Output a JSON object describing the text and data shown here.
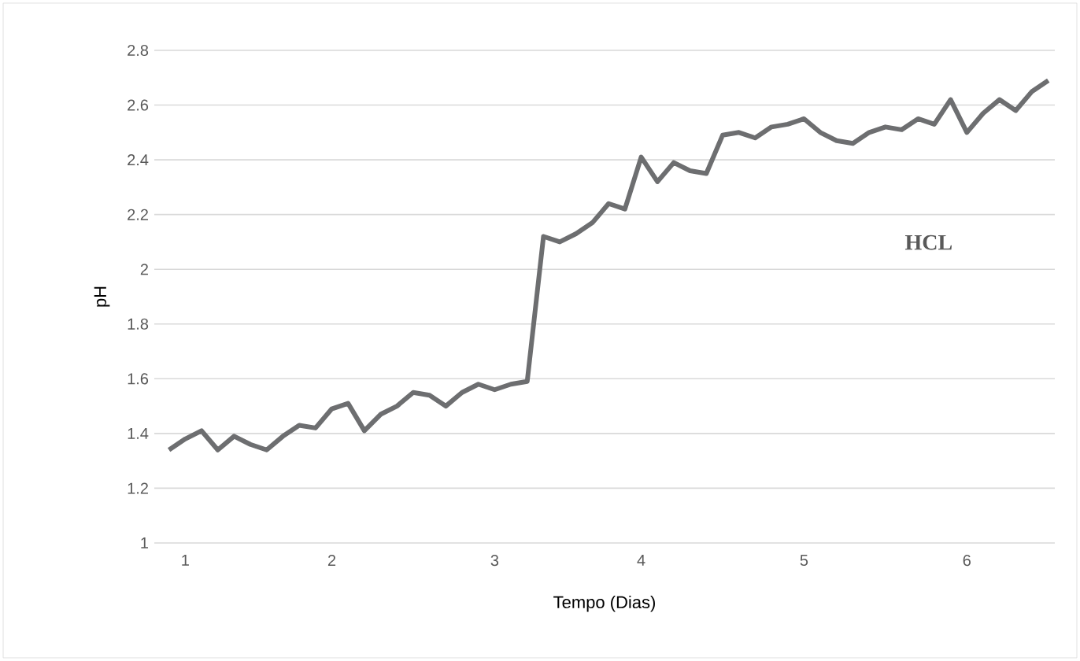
{
  "chart_data": {
    "type": "line",
    "xlabel": "Tempo (Dias)",
    "ylabel": "pH",
    "categories": [
      null,
      "1",
      null,
      null,
      null,
      null,
      null,
      null,
      null,
      null,
      "2",
      null,
      null,
      null,
      null,
      null,
      null,
      null,
      null,
      null,
      "3",
      null,
      null,
      null,
      null,
      null,
      null,
      null,
      null,
      "4",
      null,
      null,
      null,
      null,
      null,
      null,
      null,
      null,
      null,
      "5",
      null,
      null,
      null,
      null,
      null,
      null,
      null,
      null,
      null,
      "6",
      null,
      null,
      null,
      null,
      null
    ],
    "series": [
      {
        "color": "#6d6e70",
        "values": [
          1.34,
          1.38,
          1.41,
          1.34,
          1.39,
          1.36,
          1.34,
          1.39,
          1.43,
          1.42,
          1.49,
          1.51,
          1.41,
          1.47,
          1.5,
          1.55,
          1.54,
          1.5,
          1.55,
          1.58,
          1.56,
          1.58,
          1.59,
          2.12,
          2.1,
          2.13,
          2.17,
          2.24,
          2.22,
          2.41,
          2.32,
          2.39,
          2.36,
          2.35,
          2.49,
          2.5,
          2.48,
          2.52,
          2.53,
          2.55,
          2.5,
          2.47,
          2.46,
          2.5,
          2.52,
          2.51,
          2.55,
          2.53,
          2.62,
          2.5,
          2.57,
          2.62,
          2.58,
          2.65,
          2.69
        ]
      }
    ],
    "ylim": [
      1,
      2.8
    ],
    "yticks": [
      1,
      1.2,
      1.4,
      1.6,
      1.8,
      2,
      2.2,
      2.4,
      2.6,
      2.8
    ],
    "grid": "y",
    "marker": "none",
    "line_style": "solid",
    "annotations": [
      "HCL"
    ]
  }
}
